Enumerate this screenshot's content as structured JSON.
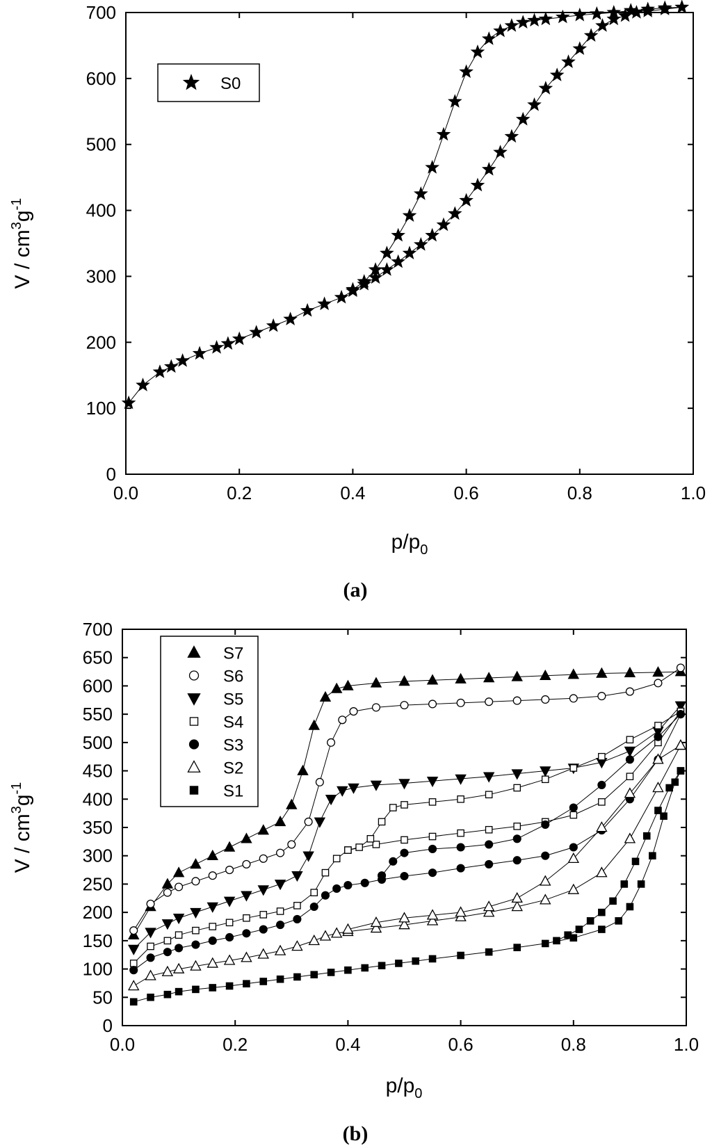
{
  "chart_data": [
    {
      "type": "line",
      "panel_label": "(a)",
      "xlabel": "p/p",
      "xlabel_sub": "0",
      "ylabel": "V / cm",
      "ylabel_sup1": "3",
      "ylabel_mid": "g",
      "ylabel_sup2": "-1",
      "xlim": [
        0.0,
        1.0
      ],
      "ylim": [
        0,
        700
      ],
      "xticks": [
        "0.0",
        "0.2",
        "0.4",
        "0.6",
        "0.8",
        "1.0"
      ],
      "yticks": [
        "0",
        "100",
        "200",
        "300",
        "400",
        "500",
        "600",
        "700"
      ],
      "legend_position": "top-left",
      "series": [
        {
          "name": "S0",
          "marker": "star",
          "branches": [
            {
              "x": [
                0.005,
                0.03,
                0.06,
                0.08,
                0.1,
                0.13,
                0.16,
                0.18,
                0.2,
                0.23,
                0.26,
                0.29,
                0.32,
                0.35,
                0.38,
                0.4,
                0.42,
                0.44,
                0.46,
                0.48,
                0.5,
                0.52,
                0.54,
                0.56,
                0.58,
                0.6,
                0.62,
                0.64,
                0.66,
                0.68,
                0.7,
                0.72,
                0.74,
                0.76,
                0.78,
                0.8,
                0.82,
                0.84,
                0.86,
                0.88,
                0.9,
                0.92,
                0.95,
                0.98
              ],
              "y": [
                108,
                135,
                155,
                163,
                172,
                183,
                192,
                198,
                205,
                215,
                225,
                235,
                248,
                258,
                268,
                278,
                288,
                298,
                310,
                322,
                335,
                348,
                362,
                378,
                395,
                415,
                438,
                462,
                488,
                512,
                538,
                560,
                585,
                605,
                625,
                645,
                665,
                680,
                690,
                695,
                700,
                702,
                705,
                708
              ]
            },
            {
              "x": [
                0.98,
                0.95,
                0.92,
                0.89,
                0.86,
                0.83,
                0.8,
                0.77,
                0.74,
                0.72,
                0.7,
                0.68,
                0.66,
                0.64,
                0.62,
                0.6,
                0.58,
                0.56,
                0.54,
                0.52,
                0.5,
                0.48,
                0.46,
                0.44,
                0.42,
                0.4
              ],
              "y": [
                708,
                707,
                705,
                703,
                700,
                698,
                696,
                693,
                690,
                688,
                685,
                680,
                672,
                660,
                640,
                610,
                565,
                515,
                465,
                425,
                392,
                362,
                335,
                310,
                292,
                280
              ]
            }
          ]
        }
      ]
    },
    {
      "type": "line",
      "panel_label": "(b)",
      "xlabel": "p/p",
      "xlabel_sub": "0",
      "ylabel": "V / cm",
      "ylabel_sup1": "3",
      "ylabel_mid": "g",
      "ylabel_sup2": "-1",
      "xlim": [
        0.0,
        1.0
      ],
      "ylim": [
        0,
        700
      ],
      "xticks": [
        "0.0",
        "0.2",
        "0.4",
        "0.6",
        "0.8",
        "1.0"
      ],
      "yticks": [
        "0",
        "50",
        "100",
        "150",
        "200",
        "250",
        "300",
        "350",
        "400",
        "450",
        "500",
        "550",
        "600",
        "650",
        "700"
      ],
      "legend_position": "top-left",
      "series": [
        {
          "name": "S7",
          "marker": "triangle-up-filled",
          "branches": [
            {
              "x": [
                0.02,
                0.05,
                0.08,
                0.1,
                0.13,
                0.16,
                0.19,
                0.22,
                0.25,
                0.28,
                0.3,
                0.32,
                0.34,
                0.36,
                0.38,
                0.4,
                0.45,
                0.5,
                0.55,
                0.6,
                0.65,
                0.7,
                0.75,
                0.8,
                0.85,
                0.9,
                0.95,
                0.99
              ],
              "y": [
                160,
                210,
                250,
                270,
                285,
                300,
                315,
                330,
                345,
                360,
                390,
                450,
                530,
                580,
                595,
                600,
                605,
                608,
                610,
                612,
                614,
                616,
                618,
                620,
                622,
                623,
                624,
                625
              ]
            }
          ]
        },
        {
          "name": "S6",
          "marker": "circle-open",
          "branches": [
            {
              "x": [
                0.02,
                0.05,
                0.08,
                0.1,
                0.13,
                0.16,
                0.19,
                0.22,
                0.25,
                0.28,
                0.3,
                0.33,
                0.35,
                0.37,
                0.39,
                0.41,
                0.45,
                0.5,
                0.55,
                0.6,
                0.65,
                0.7,
                0.75,
                0.8,
                0.85,
                0.9,
                0.95,
                0.99
              ],
              "y": [
                168,
                215,
                235,
                245,
                255,
                265,
                275,
                285,
                295,
                305,
                320,
                360,
                430,
                500,
                540,
                555,
                562,
                566,
                568,
                570,
                572,
                574,
                576,
                578,
                582,
                590,
                605,
                632
              ]
            }
          ]
        },
        {
          "name": "S5",
          "marker": "triangle-down-filled",
          "branches": [
            {
              "x": [
                0.02,
                0.05,
                0.08,
                0.1,
                0.13,
                0.16,
                0.19,
                0.22,
                0.25,
                0.28,
                0.31,
                0.33,
                0.35,
                0.37,
                0.39,
                0.41,
                0.45,
                0.5,
                0.55,
                0.6,
                0.65,
                0.7,
                0.75,
                0.8,
                0.85,
                0.9,
                0.95,
                0.99
              ],
              "y": [
                135,
                165,
                180,
                190,
                200,
                210,
                220,
                230,
                240,
                250,
                265,
                300,
                360,
                400,
                415,
                420,
                425,
                428,
                432,
                436,
                440,
                445,
                450,
                455,
                465,
                485,
                520,
                565
              ]
            }
          ]
        },
        {
          "name": "S4",
          "marker": "square-open",
          "branches": [
            {
              "x": [
                0.02,
                0.05,
                0.08,
                0.1,
                0.13,
                0.16,
                0.19,
                0.22,
                0.25,
                0.28,
                0.31,
                0.34,
                0.36,
                0.38,
                0.4,
                0.45,
                0.5,
                0.55,
                0.6,
                0.65,
                0.7,
                0.75,
                0.8,
                0.85,
                0.9,
                0.95,
                0.99
              ],
              "y": [
                110,
                140,
                150,
                160,
                168,
                175,
                182,
                190,
                196,
                202,
                212,
                235,
                270,
                295,
                310,
                320,
                328,
                334,
                340,
                346,
                352,
                360,
                372,
                395,
                440,
                500,
                555
              ]
            },
            {
              "x": [
                0.99,
                0.95,
                0.9,
                0.85,
                0.8,
                0.75,
                0.7,
                0.65,
                0.6,
                0.55,
                0.5,
                0.48,
                0.46,
                0.44,
                0.42,
                0.4
              ],
              "y": [
                555,
                530,
                505,
                475,
                455,
                435,
                420,
                408,
                400,
                395,
                390,
                385,
                360,
                330,
                315,
                310
              ]
            }
          ]
        },
        {
          "name": "S3",
          "marker": "circle-filled",
          "branches": [
            {
              "x": [
                0.02,
                0.05,
                0.08,
                0.1,
                0.13,
                0.16,
                0.19,
                0.22,
                0.25,
                0.28,
                0.31,
                0.34,
                0.36,
                0.38,
                0.4,
                0.43,
                0.46,
                0.5,
                0.55,
                0.6,
                0.65,
                0.7,
                0.75,
                0.8,
                0.85,
                0.9,
                0.95,
                0.99
              ],
              "y": [
                98,
                120,
                130,
                137,
                143,
                150,
                156,
                163,
                170,
                178,
                188,
                210,
                230,
                242,
                248,
                252,
                258,
                264,
                270,
                278,
                285,
                292,
                300,
                315,
                345,
                400,
                470,
                550
              ]
            },
            {
              "x": [
                0.99,
                0.95,
                0.9,
                0.85,
                0.8,
                0.75,
                0.7,
                0.65,
                0.6,
                0.55,
                0.5,
                0.48,
                0.46
              ],
              "y": [
                550,
                510,
                470,
                425,
                385,
                355,
                330,
                320,
                315,
                312,
                305,
                290,
                265
              ]
            }
          ]
        },
        {
          "name": "S2",
          "marker": "triangle-up-open",
          "branches": [
            {
              "x": [
                0.02,
                0.05,
                0.08,
                0.1,
                0.13,
                0.16,
                0.19,
                0.22,
                0.25,
                0.28,
                0.31,
                0.34,
                0.36,
                0.38,
                0.4,
                0.45,
                0.5,
                0.55,
                0.6,
                0.65,
                0.7,
                0.75,
                0.8,
                0.85,
                0.9,
                0.95,
                0.99
              ],
              "y": [
                70,
                88,
                95,
                100,
                105,
                110,
                115,
                120,
                126,
                132,
                140,
                150,
                158,
                163,
                166,
                172,
                178,
                185,
                192,
                200,
                210,
                222,
                240,
                270,
                330,
                420,
                495
              ]
            },
            {
              "x": [
                0.99,
                0.95,
                0.9,
                0.85,
                0.8,
                0.75,
                0.7,
                0.65,
                0.6,
                0.55,
                0.5,
                0.45,
                0.4
              ],
              "y": [
                495,
                470,
                410,
                350,
                295,
                255,
                225,
                210,
                200,
                195,
                190,
                182,
                170
              ]
            }
          ]
        },
        {
          "name": "S1",
          "marker": "square-filled",
          "branches": [
            {
              "x": [
                0.02,
                0.05,
                0.08,
                0.1,
                0.13,
                0.16,
                0.19,
                0.22,
                0.25,
                0.28,
                0.31,
                0.34,
                0.37,
                0.4,
                0.43,
                0.46,
                0.49,
                0.52,
                0.55,
                0.6,
                0.65,
                0.7,
                0.75,
                0.8,
                0.85,
                0.88,
                0.9,
                0.92,
                0.94,
                0.96,
                0.98,
                0.99
              ],
              "y": [
                42,
                50,
                55,
                60,
                64,
                67,
                70,
                74,
                78,
                82,
                86,
                90,
                94,
                98,
                102,
                106,
                110,
                114,
                118,
                124,
                130,
                138,
                145,
                155,
                170,
                185,
                210,
                250,
                300,
                370,
                430,
                450
              ]
            },
            {
              "x": [
                0.99,
                0.97,
                0.95,
                0.93,
                0.91,
                0.89,
                0.87,
                0.85,
                0.83,
                0.81,
                0.79,
                0.77
              ],
              "y": [
                450,
                420,
                380,
                335,
                290,
                250,
                220,
                200,
                185,
                170,
                160,
                150
              ]
            }
          ]
        }
      ]
    }
  ]
}
